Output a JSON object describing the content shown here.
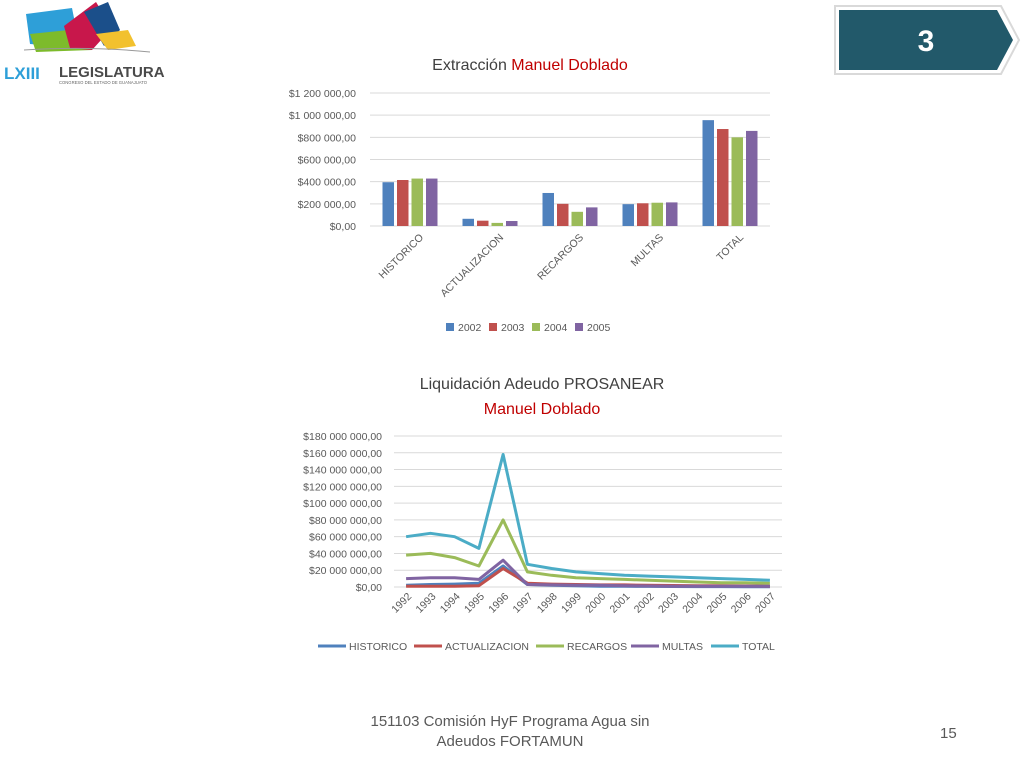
{
  "logo": {
    "text": "LEGISLATURA",
    "roman": "LXIII",
    "subtitle": "CONGRESO DEL ESTADO DE GUANAJUATO"
  },
  "section_badge": "3",
  "footer": {
    "line1": "151103 Comisión HyF Programa Agua sin",
    "line2": "Adeudos FORTAMUN"
  },
  "page_number": "15",
  "colors": {
    "title_accent": "#c00000",
    "badge": "#22596a",
    "s1": "#4f81bd",
    "s2": "#c0504d",
    "s3": "#9bbb59",
    "s4": "#8064a2",
    "s5": "#4bacc6"
  },
  "chart_data": [
    {
      "type": "bar",
      "title": "Extracción",
      "title_accent": "Manuel Doblado",
      "categories": [
        "HISTORICO",
        "ACTUALIZACION",
        "RECARGOS",
        "MULTAS",
        "TOTAL"
      ],
      "series": [
        {
          "name": "2002",
          "values": [
            395000,
            65000,
            298000,
            197000,
            955000
          ]
        },
        {
          "name": "2003",
          "values": [
            415000,
            48000,
            200000,
            205000,
            875000
          ]
        },
        {
          "name": "2004",
          "values": [
            428000,
            28000,
            128000,
            210000,
            800000
          ]
        },
        {
          "name": "2005",
          "values": [
            428000,
            45000,
            168000,
            213000,
            858000
          ]
        }
      ],
      "yticks": [
        "$0,00",
        "$200 000,00",
        "$400 000,00",
        "$600 000,00",
        "$800 000,00",
        "$1 000 000,00",
        "$1 200 000,00"
      ],
      "ylim": [
        0,
        1200000
      ],
      "legend_position": "bottom",
      "grid": true
    },
    {
      "type": "line",
      "title": "Liquidación Adeudo PROSANEAR",
      "title_accent": "Manuel Doblado",
      "x": [
        "1992",
        "1993",
        "1994",
        "1995",
        "1996",
        "1997",
        "1998",
        "1999",
        "2000",
        "2001",
        "2002",
        "2003",
        "2004",
        "2005",
        "2006",
        "2007"
      ],
      "series": [
        {
          "name": "HISTORICO",
          "values": [
            2000000,
            3000000,
            3500000,
            4500000,
            25000000,
            3000000,
            2000000,
            1500000,
            1000000,
            800000,
            700000,
            600000,
            500000,
            500000,
            400000,
            400000
          ]
        },
        {
          "name": "ACTUALIZACION",
          "values": [
            1000000,
            1000000,
            1000000,
            1500000,
            22000000,
            4500000,
            3500000,
            3000000,
            2500000,
            2500000,
            2000000,
            1800000,
            1500000,
            1500000,
            1200000,
            1000000
          ]
        },
        {
          "name": "RECARGOS",
          "values": [
            38000000,
            40000000,
            35000000,
            25000000,
            80000000,
            18000000,
            14000000,
            11000000,
            10000000,
            9000000,
            8000000,
            7000000,
            6000000,
            5000000,
            5000000,
            4500000
          ]
        },
        {
          "name": "MULTAS",
          "values": [
            10000000,
            11000000,
            11000000,
            9000000,
            32000000,
            3000000,
            2500000,
            2000000,
            2000000,
            1500000,
            1200000,
            1000000,
            1000000,
            900000,
            800000,
            800000
          ]
        },
        {
          "name": "TOTAL",
          "values": [
            60000000,
            64000000,
            60000000,
            46000000,
            158000000,
            27000000,
            22000000,
            18000000,
            16000000,
            14000000,
            13000000,
            12000000,
            11000000,
            10000000,
            9000000,
            8000000
          ]
        }
      ],
      "yticks": [
        "$0,00",
        "$20 000 000,00",
        "$40 000 000,00",
        "$60 000 000,00",
        "$80 000 000,00",
        "$100 000 000,00",
        "$120 000 000,00",
        "$140 000 000,00",
        "$160 000 000,00",
        "$180 000 000,00"
      ],
      "ylim": [
        0,
        180000000
      ],
      "legend_position": "bottom",
      "grid": true
    }
  ]
}
